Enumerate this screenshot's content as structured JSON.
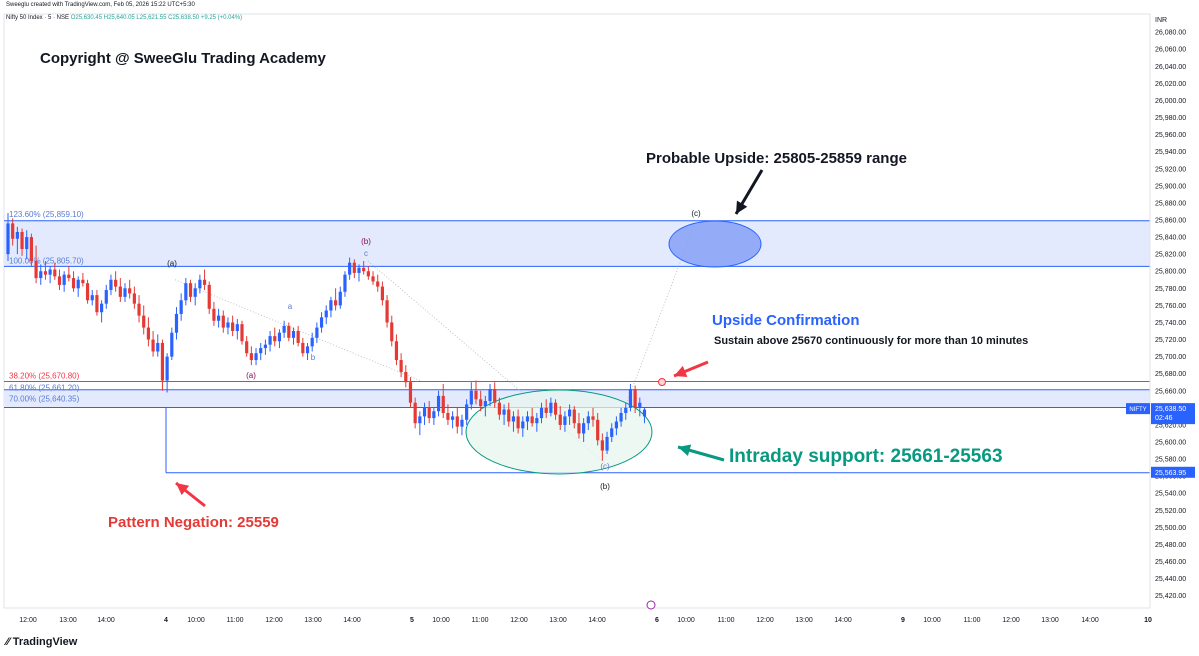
{
  "header": {
    "created_by": "Sweeglu created with TradingView.com, Feb 05, 2026 15:22 UTC+5:30",
    "symbol": "Nifty 50 Index · 5 · NSE",
    "ohlc": "O25,630.45  H25,640.05  L25,621.55  C25,638.50  +9.25 (+0.04%)"
  },
  "footer": {
    "brand": "TradingView"
  },
  "colors": {
    "up": "#26a69a",
    "down": "#ef5350",
    "candle_up": "#2962ff",
    "candle_down": "#e53935",
    "fib_blue": "#2962ff",
    "fib_red": "#f23645",
    "support_green": "#089981",
    "band": "#e3eafd"
  },
  "chart_data": {
    "type": "candlestick",
    "currency": "INR",
    "ylim": [
      25400,
      26100
    ],
    "y_ticks": [
      25420,
      25440,
      25460,
      25480,
      25500,
      25520,
      25540,
      25560,
      25580,
      25600,
      25620,
      25640,
      25660,
      25680,
      25700,
      25720,
      25740,
      25760,
      25780,
      25800,
      25820,
      25840,
      25860,
      25880,
      25900,
      25920,
      25940,
      25960,
      25980,
      26000,
      26020,
      26040,
      26060,
      26080
    ],
    "x_ticks": [
      "12:00",
      "13:00",
      "14:00",
      "4",
      "10:00",
      "11:00",
      "12:00",
      "13:00",
      "14:00",
      "5",
      "10:00",
      "11:00",
      "12:00",
      "13:00",
      "14:00",
      "6",
      "10:00",
      "11:00",
      "12:00",
      "13:00",
      "14:00",
      "9",
      "10:00",
      "11:00",
      "12:00",
      "13:00",
      "14:00",
      "10"
    ],
    "last_price": "25,638.50",
    "last_price_countdown": "02:46",
    "last_price_symbol": "NIFTY",
    "support_line_label": "25,563.95",
    "fib_levels": [
      {
        "label": "123.60% (25,859.10)",
        "value": 25859.1
      },
      {
        "label": "100.00% (25,805.70)",
        "value": 25805.7
      },
      {
        "label": "38.20% (25,670.80)",
        "value": 25670.8
      },
      {
        "label": "61.80% (25,661.20)",
        "value": 25661.2
      },
      {
        "label": "70.00% (25,640.35)",
        "value": 25640.35
      }
    ],
    "wave_labels": [
      "(a)",
      "(a)",
      "a",
      "b",
      "(b)",
      "c",
      "(b)",
      "(c)",
      "(c)"
    ],
    "annotations": {
      "copyright": "Copyright @ SweeGlu Trading Academy",
      "probable_upside": "Probable Upside: 25805-25859 range",
      "upside_confirmation": "Upside Confirmation",
      "sustain": "Sustain above 25670 continuously for more than 10 minutes",
      "intraday_support": "Intraday support: 25661-25563",
      "pattern_negation": "Pattern Negation: 25559"
    },
    "candles": [
      {
        "o": 25820,
        "h": 25868,
        "l": 25812,
        "c": 25856
      },
      {
        "o": 25856,
        "h": 25862,
        "l": 25830,
        "c": 25838
      },
      {
        "o": 25838,
        "h": 25852,
        "l": 25820,
        "c": 25846
      },
      {
        "o": 25846,
        "h": 25850,
        "l": 25818,
        "c": 25826
      },
      {
        "o": 25826,
        "h": 25848,
        "l": 25814,
        "c": 25840
      },
      {
        "o": 25840,
        "h": 25844,
        "l": 25806,
        "c": 25812
      },
      {
        "o": 25812,
        "h": 25830,
        "l": 25786,
        "c": 25792
      },
      {
        "o": 25792,
        "h": 25808,
        "l": 25784,
        "c": 25800
      },
      {
        "o": 25800,
        "h": 25812,
        "l": 25790,
        "c": 25796
      },
      {
        "o": 25796,
        "h": 25806,
        "l": 25786,
        "c": 25802
      },
      {
        "o": 25802,
        "h": 25810,
        "l": 25790,
        "c": 25794
      },
      {
        "o": 25794,
        "h": 25802,
        "l": 25778,
        "c": 25784
      },
      {
        "o": 25784,
        "h": 25800,
        "l": 25776,
        "c": 25796
      },
      {
        "o": 25796,
        "h": 25806,
        "l": 25788,
        "c": 25792
      },
      {
        "o": 25792,
        "h": 25800,
        "l": 25776,
        "c": 25780
      },
      {
        "o": 25780,
        "h": 25794,
        "l": 25770,
        "c": 25790
      },
      {
        "o": 25790,
        "h": 25798,
        "l": 25782,
        "c": 25786
      },
      {
        "o": 25786,
        "h": 25790,
        "l": 25762,
        "c": 25766
      },
      {
        "o": 25766,
        "h": 25778,
        "l": 25760,
        "c": 25772
      },
      {
        "o": 25772,
        "h": 25778,
        "l": 25748,
        "c": 25752
      },
      {
        "o": 25752,
        "h": 25766,
        "l": 25740,
        "c": 25762
      },
      {
        "o": 25762,
        "h": 25784,
        "l": 25756,
        "c": 25778
      },
      {
        "o": 25778,
        "h": 25796,
        "l": 25772,
        "c": 25790
      },
      {
        "o": 25790,
        "h": 25800,
        "l": 25776,
        "c": 25782
      },
      {
        "o": 25782,
        "h": 25792,
        "l": 25764,
        "c": 25770
      },
      {
        "o": 25770,
        "h": 25786,
        "l": 25764,
        "c": 25780
      },
      {
        "o": 25780,
        "h": 25790,
        "l": 25768,
        "c": 25774
      },
      {
        "o": 25774,
        "h": 25782,
        "l": 25756,
        "c": 25762
      },
      {
        "o": 25762,
        "h": 25772,
        "l": 25740,
        "c": 25748
      },
      {
        "o": 25748,
        "h": 25760,
        "l": 25726,
        "c": 25734
      },
      {
        "o": 25734,
        "h": 25746,
        "l": 25712,
        "c": 25720
      },
      {
        "o": 25720,
        "h": 25730,
        "l": 25700,
        "c": 25706
      },
      {
        "o": 25706,
        "h": 25726,
        "l": 25700,
        "c": 25716
      },
      {
        "o": 25716,
        "h": 25720,
        "l": 25660,
        "c": 25672
      },
      {
        "o": 25672,
        "h": 25704,
        "l": 25658,
        "c": 25700
      },
      {
        "o": 25700,
        "h": 25734,
        "l": 25696,
        "c": 25728
      },
      {
        "o": 25728,
        "h": 25758,
        "l": 25720,
        "c": 25750
      },
      {
        "o": 25750,
        "h": 25774,
        "l": 25742,
        "c": 25766
      },
      {
        "o": 25766,
        "h": 25792,
        "l": 25760,
        "c": 25786
      },
      {
        "o": 25786,
        "h": 25790,
        "l": 25764,
        "c": 25770
      },
      {
        "o": 25770,
        "h": 25786,
        "l": 25760,
        "c": 25780
      },
      {
        "o": 25780,
        "h": 25796,
        "l": 25774,
        "c": 25790
      },
      {
        "o": 25790,
        "h": 25802,
        "l": 25778,
        "c": 25784
      },
      {
        "o": 25784,
        "h": 25788,
        "l": 25750,
        "c": 25756
      },
      {
        "o": 25756,
        "h": 25764,
        "l": 25736,
        "c": 25742
      },
      {
        "o": 25742,
        "h": 25756,
        "l": 25734,
        "c": 25748
      },
      {
        "o": 25748,
        "h": 25754,
        "l": 25728,
        "c": 25734
      },
      {
        "o": 25734,
        "h": 25746,
        "l": 25726,
        "c": 25740
      },
      {
        "o": 25740,
        "h": 25748,
        "l": 25724,
        "c": 25730
      },
      {
        "o": 25730,
        "h": 25744,
        "l": 25720,
        "c": 25738
      },
      {
        "o": 25738,
        "h": 25742,
        "l": 25714,
        "c": 25718
      },
      {
        "o": 25718,
        "h": 25724,
        "l": 25700,
        "c": 25704
      },
      {
        "o": 25704,
        "h": 25712,
        "l": 25690,
        "c": 25696
      },
      {
        "o": 25696,
        "h": 25710,
        "l": 25690,
        "c": 25704
      },
      {
        "o": 25704,
        "h": 25716,
        "l": 25696,
        "c": 25710
      },
      {
        "o": 25710,
        "h": 25720,
        "l": 25702,
        "c": 25714
      },
      {
        "o": 25714,
        "h": 25730,
        "l": 25706,
        "c": 25724
      },
      {
        "o": 25724,
        "h": 25734,
        "l": 25712,
        "c": 25718
      },
      {
        "o": 25718,
        "h": 25732,
        "l": 25710,
        "c": 25728
      },
      {
        "o": 25728,
        "h": 25742,
        "l": 25722,
        "c": 25736
      },
      {
        "o": 25736,
        "h": 25740,
        "l": 25718,
        "c": 25722
      },
      {
        "o": 25722,
        "h": 25734,
        "l": 25714,
        "c": 25730
      },
      {
        "o": 25730,
        "h": 25736,
        "l": 25712,
        "c": 25716
      },
      {
        "o": 25716,
        "h": 25722,
        "l": 25700,
        "c": 25704
      },
      {
        "o": 25704,
        "h": 25716,
        "l": 25696,
        "c": 25712
      },
      {
        "o": 25712,
        "h": 25728,
        "l": 25706,
        "c": 25722
      },
      {
        "o": 25722,
        "h": 25740,
        "l": 25716,
        "c": 25734
      },
      {
        "o": 25734,
        "h": 25752,
        "l": 25728,
        "c": 25746
      },
      {
        "o": 25746,
        "h": 25760,
        "l": 25738,
        "c": 25754
      },
      {
        "o": 25754,
        "h": 25770,
        "l": 25746,
        "c": 25766
      },
      {
        "o": 25766,
        "h": 25780,
        "l": 25754,
        "c": 25760
      },
      {
        "o": 25760,
        "h": 25782,
        "l": 25756,
        "c": 25776
      },
      {
        "o": 25776,
        "h": 25800,
        "l": 25770,
        "c": 25796
      },
      {
        "o": 25796,
        "h": 25816,
        "l": 25790,
        "c": 25810
      },
      {
        "o": 25810,
        "h": 25814,
        "l": 25792,
        "c": 25798
      },
      {
        "o": 25798,
        "h": 25808,
        "l": 25788,
        "c": 25804
      },
      {
        "o": 25804,
        "h": 25812,
        "l": 25796,
        "c": 25800
      },
      {
        "o": 25800,
        "h": 25806,
        "l": 25790,
        "c": 25794
      },
      {
        "o": 25794,
        "h": 25800,
        "l": 25784,
        "c": 25788
      },
      {
        "o": 25788,
        "h": 25796,
        "l": 25776,
        "c": 25782
      },
      {
        "o": 25782,
        "h": 25788,
        "l": 25760,
        "c": 25766
      },
      {
        "o": 25766,
        "h": 25772,
        "l": 25734,
        "c": 25740
      },
      {
        "o": 25740,
        "h": 25748,
        "l": 25712,
        "c": 25718
      },
      {
        "o": 25718,
        "h": 25726,
        "l": 25690,
        "c": 25696
      },
      {
        "o": 25696,
        "h": 25704,
        "l": 25676,
        "c": 25682
      },
      {
        "o": 25682,
        "h": 25690,
        "l": 25664,
        "c": 25670
      },
      {
        "o": 25670,
        "h": 25676,
        "l": 25640,
        "c": 25646
      },
      {
        "o": 25646,
        "h": 25652,
        "l": 25616,
        "c": 25622
      },
      {
        "o": 25622,
        "h": 25636,
        "l": 25608,
        "c": 25630
      },
      {
        "o": 25630,
        "h": 25646,
        "l": 25620,
        "c": 25640
      },
      {
        "o": 25640,
        "h": 25648,
        "l": 25622,
        "c": 25628
      },
      {
        "o": 25628,
        "h": 25640,
        "l": 25620,
        "c": 25636
      },
      {
        "o": 25636,
        "h": 25660,
        "l": 25630,
        "c": 25654
      },
      {
        "o": 25654,
        "h": 25668,
        "l": 25628,
        "c": 25634
      },
      {
        "o": 25634,
        "h": 25644,
        "l": 25620,
        "c": 25626
      },
      {
        "o": 25626,
        "h": 25636,
        "l": 25616,
        "c": 25630
      },
      {
        "o": 25630,
        "h": 25640,
        "l": 25610,
        "c": 25618
      },
      {
        "o": 25618,
        "h": 25632,
        "l": 25608,
        "c": 25626
      },
      {
        "o": 25626,
        "h": 25650,
        "l": 25620,
        "c": 25644
      },
      {
        "o": 25644,
        "h": 25670,
        "l": 25638,
        "c": 25660
      },
      {
        "o": 25660,
        "h": 25672,
        "l": 25644,
        "c": 25650
      },
      {
        "o": 25650,
        "h": 25660,
        "l": 25636,
        "c": 25642
      },
      {
        "o": 25642,
        "h": 25654,
        "l": 25630,
        "c": 25648
      },
      {
        "o": 25648,
        "h": 25668,
        "l": 25642,
        "c": 25662
      },
      {
        "o": 25662,
        "h": 25670,
        "l": 25640,
        "c": 25646
      },
      {
        "o": 25646,
        "h": 25652,
        "l": 25626,
        "c": 25632
      },
      {
        "o": 25632,
        "h": 25644,
        "l": 25620,
        "c": 25638
      },
      {
        "o": 25638,
        "h": 25646,
        "l": 25618,
        "c": 25624
      },
      {
        "o": 25624,
        "h": 25636,
        "l": 25612,
        "c": 25630
      },
      {
        "o": 25630,
        "h": 25638,
        "l": 25610,
        "c": 25616
      },
      {
        "o": 25616,
        "h": 25630,
        "l": 25606,
        "c": 25624
      },
      {
        "o": 25624,
        "h": 25636,
        "l": 25614,
        "c": 25630
      },
      {
        "o": 25630,
        "h": 25640,
        "l": 25618,
        "c": 25622
      },
      {
        "o": 25622,
        "h": 25634,
        "l": 25612,
        "c": 25628
      },
      {
        "o": 25628,
        "h": 25646,
        "l": 25622,
        "c": 25640
      },
      {
        "o": 25640,
        "h": 25650,
        "l": 25628,
        "c": 25634
      },
      {
        "o": 25634,
        "h": 25652,
        "l": 25630,
        "c": 25646
      },
      {
        "o": 25646,
        "h": 25650,
        "l": 25626,
        "c": 25632
      },
      {
        "o": 25632,
        "h": 25642,
        "l": 25614,
        "c": 25620
      },
      {
        "o": 25620,
        "h": 25636,
        "l": 25612,
        "c": 25630
      },
      {
        "o": 25630,
        "h": 25644,
        "l": 25620,
        "c": 25638
      },
      {
        "o": 25638,
        "h": 25642,
        "l": 25616,
        "c": 25622
      },
      {
        "o": 25622,
        "h": 25634,
        "l": 25604,
        "c": 25610
      },
      {
        "o": 25610,
        "h": 25628,
        "l": 25600,
        "c": 25622
      },
      {
        "o": 25622,
        "h": 25636,
        "l": 25614,
        "c": 25630
      },
      {
        "o": 25630,
        "h": 25640,
        "l": 25618,
        "c": 25626
      },
      {
        "o": 25626,
        "h": 25634,
        "l": 25596,
        "c": 25602
      },
      {
        "o": 25602,
        "h": 25610,
        "l": 25578,
        "c": 25590
      },
      {
        "o": 25590,
        "h": 25612,
        "l": 25586,
        "c": 25606
      },
      {
        "o": 25606,
        "h": 25622,
        "l": 25600,
        "c": 25616
      },
      {
        "o": 25616,
        "h": 25630,
        "l": 25608,
        "c": 25624
      },
      {
        "o": 25624,
        "h": 25640,
        "l": 25618,
        "c": 25634
      },
      {
        "o": 25634,
        "h": 25646,
        "l": 25626,
        "c": 25640
      },
      {
        "o": 25640,
        "h": 25668,
        "l": 25636,
        "c": 25662
      },
      {
        "o": 25662,
        "h": 25666,
        "l": 25634,
        "c": 25640
      },
      {
        "o": 25640,
        "h": 25652,
        "l": 25630,
        "c": 25646
      },
      {
        "o": 25630,
        "h": 25640,
        "l": 25622,
        "c": 25638
      }
    ]
  }
}
